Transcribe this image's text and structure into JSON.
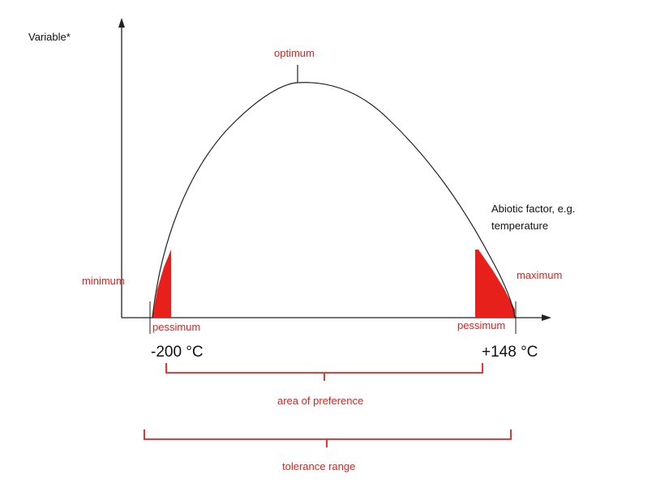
{
  "axes": {
    "y_label": "Variable*",
    "x_label_line1": "Abiotic factor, e.g.",
    "x_label_line2": "temperature"
  },
  "labels": {
    "optimum": "optimum",
    "minimum": "minimum",
    "maximum": "maximum",
    "pessimum_left": "pessimum",
    "pessimum_right": "pessimum",
    "temp_low": "-200 °C",
    "temp_high": "+148 °C",
    "area_of_preference": "area of preference",
    "tolerance_range": "tolerance range"
  },
  "colors": {
    "accent_red": "#e8201c",
    "line": "#222222"
  }
}
